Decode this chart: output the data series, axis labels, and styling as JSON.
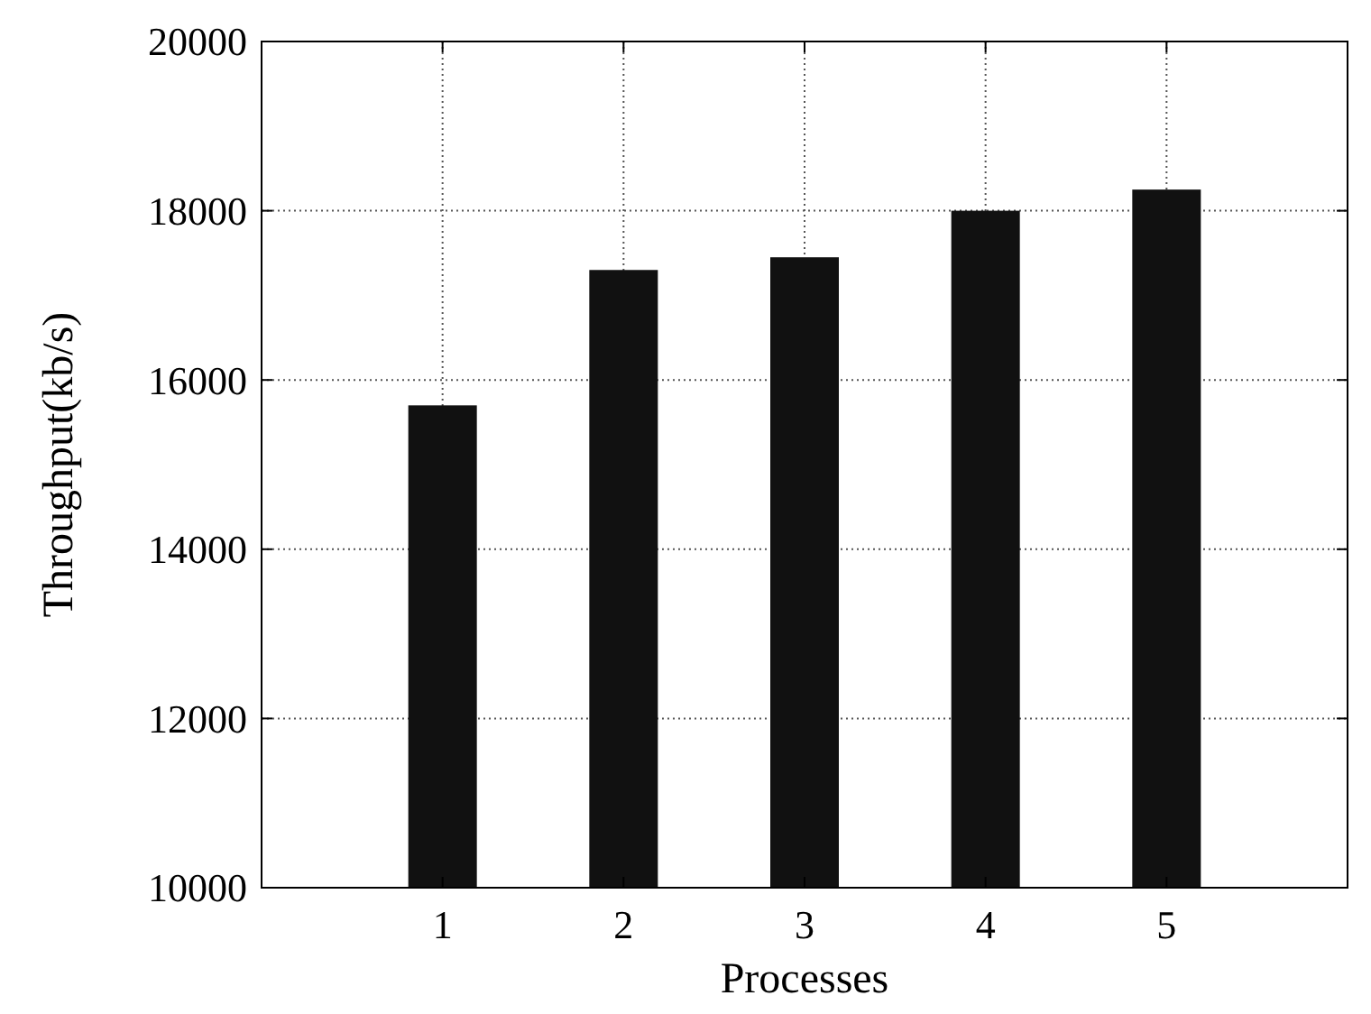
{
  "chart_data": {
    "type": "bar",
    "xlabel": "Processes",
    "ylabel": "Throughput(kb/s)",
    "categories": [
      "1",
      "2",
      "3",
      "4",
      "5"
    ],
    "values": [
      15700,
      17300,
      17450,
      18000,
      18250
    ],
    "color": "#111111",
    "ylim": [
      10000,
      20000
    ],
    "yticks": [
      10000,
      12000,
      14000,
      16000,
      18000,
      20000
    ],
    "grid": true
  }
}
